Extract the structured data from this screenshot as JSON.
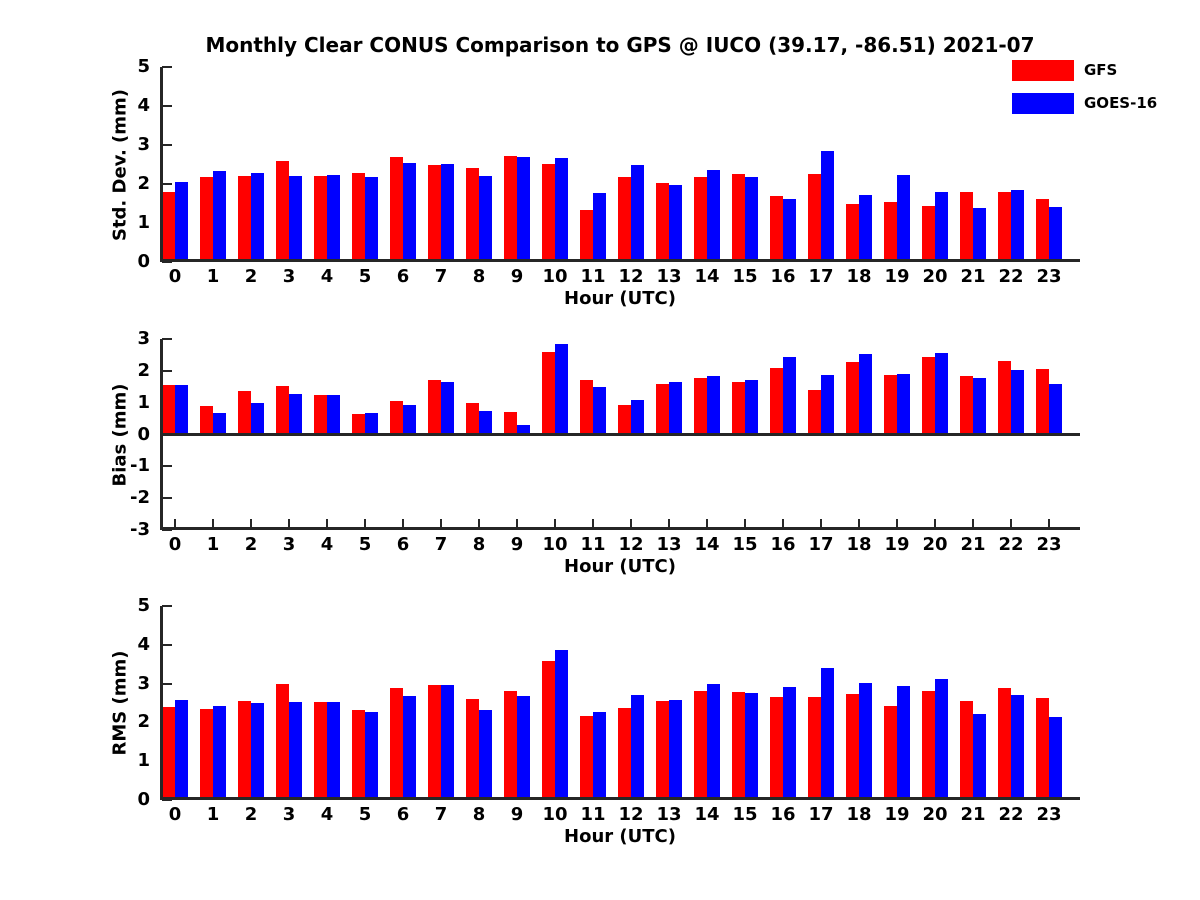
{
  "title": "Monthly Clear CONUS Comparison to GPS @ IUCO (39.17, -86.51) 2021-07",
  "legend": {
    "position": "top-right",
    "items": [
      {
        "label": "GFS",
        "color": "#ff0000"
      },
      {
        "label": "GOES-16",
        "color": "#0000ff"
      }
    ]
  },
  "colors": {
    "gfs": "#ff0000",
    "goes16": "#0000ff",
    "axis": "#262626",
    "text": "#000000",
    "background": "#ffffff"
  },
  "chart_data": [
    {
      "id": "std-dev",
      "type": "bar",
      "title": "",
      "xlabel": "Hour (UTC)",
      "ylabel": "Std. Dev. (mm)",
      "ylim": [
        0,
        5
      ],
      "yticks": [
        0,
        1,
        2,
        3,
        4,
        5
      ],
      "grid": false,
      "categories": [
        "0",
        "1",
        "2",
        "3",
        "4",
        "5",
        "6",
        "7",
        "8",
        "9",
        "10",
        "11",
        "12",
        "13",
        "14",
        "15",
        "16",
        "17",
        "18",
        "19",
        "20",
        "21",
        "22",
        "23"
      ],
      "series": [
        {
          "name": "GFS",
          "color": "#ff0000",
          "values": [
            1.8,
            2.18,
            2.21,
            2.6,
            2.2,
            2.27,
            2.69,
            2.48,
            2.42,
            2.72,
            2.52,
            1.34,
            2.17,
            2.03,
            2.18,
            2.26,
            1.68,
            2.26,
            1.49,
            1.54,
            1.44,
            1.79,
            1.79,
            1.62
          ]
        },
        {
          "name": "GOES-16",
          "color": "#0000ff",
          "values": [
            2.06,
            2.33,
            2.28,
            2.2,
            2.23,
            2.17,
            2.54,
            2.51,
            2.21,
            2.68,
            2.67,
            1.78,
            2.48,
            1.97,
            2.37,
            2.17,
            1.61,
            2.85,
            1.72,
            2.23,
            1.8,
            1.39,
            1.84,
            1.42
          ]
        }
      ]
    },
    {
      "id": "bias",
      "type": "bar",
      "title": "",
      "xlabel": "Hour (UTC)",
      "ylabel": "Bias (mm)",
      "ylim": [
        -3,
        3
      ],
      "yticks": [
        -3,
        -2,
        -1,
        0,
        1,
        2,
        3
      ],
      "grid": false,
      "categories": [
        "0",
        "1",
        "2",
        "3",
        "4",
        "5",
        "6",
        "7",
        "8",
        "9",
        "10",
        "11",
        "12",
        "13",
        "14",
        "15",
        "16",
        "17",
        "18",
        "19",
        "20",
        "21",
        "22",
        "23"
      ],
      "series": [
        {
          "name": "GFS",
          "color": "#ff0000",
          "values": [
            1.57,
            0.9,
            1.36,
            1.52,
            1.24,
            0.65,
            1.05,
            1.7,
            0.98,
            0.7,
            2.6,
            1.71,
            0.93,
            1.6,
            1.78,
            1.66,
            2.08,
            1.39,
            2.27,
            1.87,
            2.44,
            1.85,
            2.32,
            2.07
          ]
        },
        {
          "name": "GOES-16",
          "color": "#0000ff",
          "values": [
            1.56,
            0.67,
            0.99,
            1.27,
            1.24,
            0.69,
            0.92,
            1.64,
            0.74,
            0.29,
            2.83,
            1.48,
            1.07,
            1.65,
            1.84,
            1.72,
            2.43,
            1.88,
            2.52,
            1.91,
            2.56,
            1.76,
            2.03,
            1.6
          ]
        }
      ]
    },
    {
      "id": "rms",
      "type": "bar",
      "title": "",
      "xlabel": "Hour (UTC)",
      "ylabel": "RMS (mm)",
      "ylim": [
        0,
        5
      ],
      "yticks": [
        0,
        1,
        2,
        3,
        4,
        5
      ],
      "grid": false,
      "categories": [
        "0",
        "1",
        "2",
        "3",
        "4",
        "5",
        "6",
        "7",
        "8",
        "9",
        "10",
        "11",
        "12",
        "13",
        "14",
        "15",
        "16",
        "17",
        "18",
        "19",
        "20",
        "21",
        "22",
        "23"
      ],
      "series": [
        {
          "name": "GFS",
          "color": "#ff0000",
          "values": [
            2.4,
            2.35,
            2.56,
            3.0,
            2.52,
            2.33,
            2.88,
            2.97,
            2.6,
            2.8,
            3.58,
            2.17,
            2.38,
            2.55,
            2.8,
            2.78,
            2.65,
            2.65,
            2.73,
            2.41,
            2.8,
            2.55,
            2.88,
            2.62
          ]
        },
        {
          "name": "GOES-16",
          "color": "#0000ff",
          "values": [
            2.57,
            2.42,
            2.5,
            2.52,
            2.53,
            2.28,
            2.68,
            2.97,
            2.32,
            2.67,
            3.87,
            2.27,
            2.7,
            2.57,
            3.0,
            2.75,
            2.9,
            3.4,
            3.02,
            2.93,
            3.11,
            2.22,
            2.7,
            2.15
          ]
        }
      ]
    }
  ]
}
